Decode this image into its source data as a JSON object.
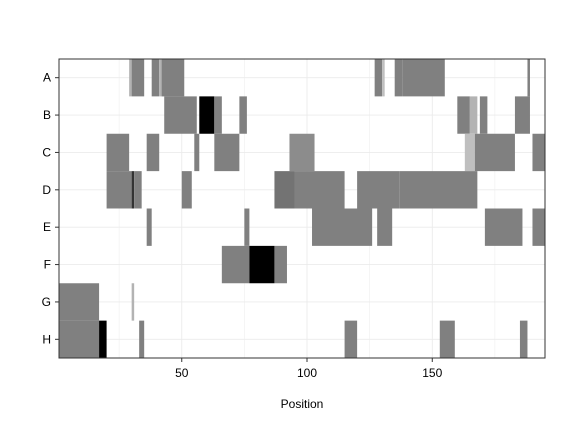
{
  "chart_data": {
    "type": "heatmap",
    "title": "",
    "xlabel": "Position",
    "ylabel": "",
    "xlim": [
      1,
      195
    ],
    "x_ticks": [
      50,
      100,
      150
    ],
    "rows": [
      "A",
      "B",
      "C",
      "D",
      "E",
      "F",
      "G",
      "H"
    ],
    "grid": true,
    "legend": "none",
    "colors": {
      "background": "#ffffff",
      "low": "#ffffff",
      "mid": "#7f7f7f",
      "high": "#000000",
      "grid": "#ebebeb",
      "frame": "#333333"
    },
    "value_scale": "0 = white, 0.5 = grey, 1 = black",
    "segments": [
      {
        "row": "A",
        "start": 29,
        "end": 30,
        "value": 0.3
      },
      {
        "row": "A",
        "start": 30,
        "end": 35,
        "value": 0.5
      },
      {
        "row": "A",
        "start": 38,
        "end": 41,
        "value": 0.5
      },
      {
        "row": "A",
        "start": 41,
        "end": 43,
        "value": 0.3
      },
      {
        "row": "A",
        "start": 42,
        "end": 51,
        "value": 0.5
      },
      {
        "row": "A",
        "start": 127,
        "end": 130,
        "value": 0.5
      },
      {
        "row": "A",
        "start": 130,
        "end": 131,
        "value": 0.25
      },
      {
        "row": "A",
        "start": 135,
        "end": 138,
        "value": 0.5
      },
      {
        "row": "A",
        "start": 138,
        "end": 155,
        "value": 0.5
      },
      {
        "row": "A",
        "start": 188,
        "end": 189,
        "value": 0.5
      },
      {
        "row": "B",
        "start": 43,
        "end": 56,
        "value": 0.5
      },
      {
        "row": "B",
        "start": 57,
        "end": 63,
        "value": 1.0
      },
      {
        "row": "B",
        "start": 63,
        "end": 66,
        "value": 0.5
      },
      {
        "row": "B",
        "start": 73,
        "end": 76,
        "value": 0.5
      },
      {
        "row": "B",
        "start": 160,
        "end": 165,
        "value": 0.5
      },
      {
        "row": "B",
        "start": 165,
        "end": 168,
        "value": 0.3
      },
      {
        "row": "B",
        "start": 169,
        "end": 172,
        "value": 0.5
      },
      {
        "row": "B",
        "start": 183,
        "end": 189,
        "value": 0.5
      },
      {
        "row": "C",
        "start": 20,
        "end": 29,
        "value": 0.5
      },
      {
        "row": "C",
        "start": 36,
        "end": 41,
        "value": 0.5
      },
      {
        "row": "C",
        "start": 55,
        "end": 57,
        "value": 0.5
      },
      {
        "row": "C",
        "start": 63,
        "end": 73,
        "value": 0.5
      },
      {
        "row": "C",
        "start": 93,
        "end": 103,
        "value": 0.45
      },
      {
        "row": "C",
        "start": 163,
        "end": 167,
        "value": 0.25
      },
      {
        "row": "C",
        "start": 167,
        "end": 183,
        "value": 0.5
      },
      {
        "row": "C",
        "start": 190,
        "end": 195,
        "value": 0.5
      },
      {
        "row": "D",
        "start": 20,
        "end": 30,
        "value": 0.5
      },
      {
        "row": "D",
        "start": 30,
        "end": 31,
        "value": 0.8
      },
      {
        "row": "D",
        "start": 31,
        "end": 34,
        "value": 0.5
      },
      {
        "row": "D",
        "start": 50,
        "end": 54,
        "value": 0.5
      },
      {
        "row": "D",
        "start": 87,
        "end": 95,
        "value": 0.55
      },
      {
        "row": "D",
        "start": 95,
        "end": 115,
        "value": 0.5
      },
      {
        "row": "D",
        "start": 120,
        "end": 137,
        "value": 0.5
      },
      {
        "row": "D",
        "start": 137,
        "end": 168,
        "value": 0.5
      },
      {
        "row": "E",
        "start": 36,
        "end": 38,
        "value": 0.5
      },
      {
        "row": "E",
        "start": 75,
        "end": 77,
        "value": 0.5
      },
      {
        "row": "E",
        "start": 102,
        "end": 126,
        "value": 0.5
      },
      {
        "row": "E",
        "start": 128,
        "end": 134,
        "value": 0.5
      },
      {
        "row": "E",
        "start": 171,
        "end": 186,
        "value": 0.5
      },
      {
        "row": "E",
        "start": 190,
        "end": 195,
        "value": 0.5
      },
      {
        "row": "F",
        "start": 66,
        "end": 77,
        "value": 0.5
      },
      {
        "row": "F",
        "start": 77,
        "end": 87,
        "value": 1.0
      },
      {
        "row": "F",
        "start": 87,
        "end": 92,
        "value": 0.5
      },
      {
        "row": "G",
        "start": 1,
        "end": 17,
        "value": 0.5
      },
      {
        "row": "G",
        "start": 30,
        "end": 31,
        "value": 0.3
      },
      {
        "row": "H",
        "start": 1,
        "end": 17,
        "value": 0.5
      },
      {
        "row": "H",
        "start": 17,
        "end": 20,
        "value": 1.0
      },
      {
        "row": "H",
        "start": 33,
        "end": 35,
        "value": 0.5
      },
      {
        "row": "H",
        "start": 115,
        "end": 120,
        "value": 0.5
      },
      {
        "row": "H",
        "start": 153,
        "end": 159,
        "value": 0.5
      },
      {
        "row": "H",
        "start": 185,
        "end": 188,
        "value": 0.5
      }
    ]
  }
}
